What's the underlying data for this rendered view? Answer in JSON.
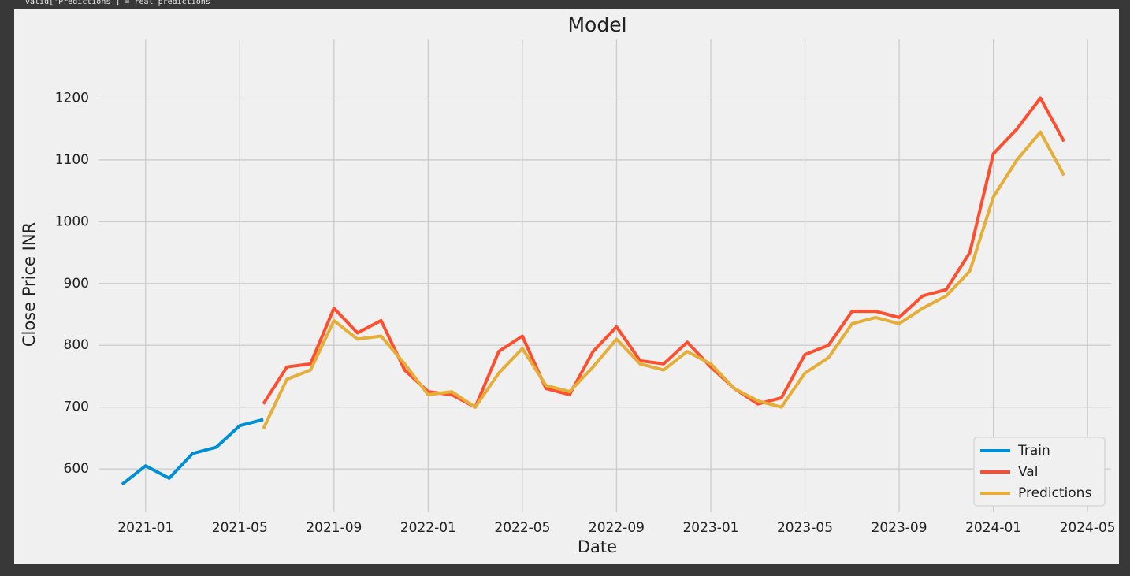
{
  "code_line": "valid['Predictions'] = real_predictions",
  "chart_data": {
    "type": "line",
    "title": "Model",
    "x_label": "Date",
    "y_label": "Close Price INR",
    "x": [
      "2020-12",
      "2021-01",
      "2021-02",
      "2021-03",
      "2021-04",
      "2021-05",
      "2021-06",
      "2021-07",
      "2021-08",
      "2021-09",
      "2021-10",
      "2021-11",
      "2021-12",
      "2022-01",
      "2022-02",
      "2022-03",
      "2022-04",
      "2022-05",
      "2022-06",
      "2022-07",
      "2022-08",
      "2022-09",
      "2022-10",
      "2022-11",
      "2022-12",
      "2023-01",
      "2023-02",
      "2023-03",
      "2023-04",
      "2023-05",
      "2023-06",
      "2023-07",
      "2023-08",
      "2023-09",
      "2023-10",
      "2023-11",
      "2023-12",
      "2024-01",
      "2024-02",
      "2024-03",
      "2024-04"
    ],
    "series": [
      {
        "name": "Train",
        "color": "#008fd5",
        "values": [
          575,
          605,
          585,
          625,
          635,
          670,
          680,
          null,
          null,
          null,
          null,
          null,
          null,
          null,
          null,
          null,
          null,
          null,
          null,
          null,
          null,
          null,
          null,
          null,
          null,
          null,
          null,
          null,
          null,
          null,
          null,
          null,
          null,
          null,
          null,
          null,
          null,
          null,
          null,
          null,
          null
        ]
      },
      {
        "name": "Val",
        "color": "#fc4f30",
        "values": [
          null,
          null,
          null,
          null,
          null,
          null,
          705,
          765,
          770,
          860,
          820,
          840,
          760,
          725,
          720,
          700,
          790,
          815,
          730,
          720,
          790,
          830,
          775,
          770,
          805,
          765,
          730,
          705,
          715,
          785,
          800,
          855,
          855,
          845,
          880,
          890,
          950,
          1110,
          1150,
          1200,
          1130
        ]
      },
      {
        "name": "Predictions",
        "color": "#e5ae38",
        "values": [
          null,
          null,
          null,
          null,
          null,
          null,
          665,
          745,
          760,
          840,
          810,
          815,
          770,
          720,
          725,
          700,
          755,
          795,
          735,
          725,
          765,
          810,
          770,
          760,
          790,
          770,
          730,
          710,
          700,
          755,
          780,
          835,
          845,
          835,
          860,
          880,
          920,
          1040,
          1100,
          1145,
          1075
        ]
      }
    ],
    "xlim": [
      "2020-11",
      "2024-06"
    ],
    "xticks": [
      "2021-01",
      "2021-05",
      "2021-09",
      "2022-01",
      "2022-05",
      "2022-09",
      "2023-01",
      "2023-05",
      "2023-09",
      "2024-01",
      "2024-05"
    ],
    "ylim": [
      530,
      1295
    ],
    "yticks": [
      600,
      700,
      800,
      900,
      1000,
      1100,
      1200
    ],
    "grid": true,
    "legend": "lower right"
  }
}
